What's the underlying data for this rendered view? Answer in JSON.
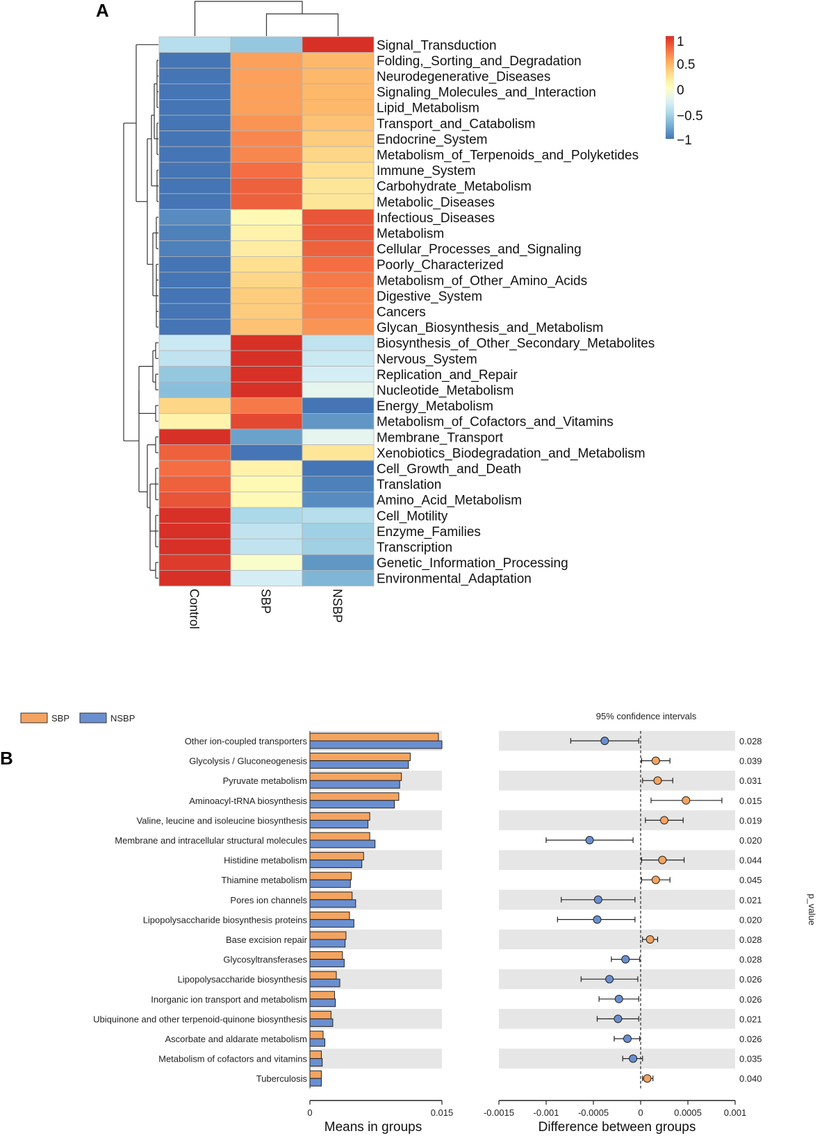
{
  "panels": {
    "a": "A",
    "b": "B"
  },
  "colors": {
    "high": "#d73027",
    "mid_high": "#f46d43",
    "orange": "#fdae61",
    "light_orange": "#fee090",
    "neutral": "#ffffbf",
    "light_blue": "#e0f3f8",
    "blue_mid": "#abd9e9",
    "blue": "#74add1",
    "low": "#4575b4",
    "sbp": "#f4a460",
    "nsbp": "#6a8fd0",
    "stripe": "#e6e6e6"
  },
  "heatmap": {
    "columns": [
      "Control",
      "SBP",
      "NSBP"
    ],
    "colorbar": {
      "ticks": [
        "1",
        "0.5",
        "0",
        "−0.5",
        "−1"
      ],
      "values": [
        1,
        0.5,
        0,
        -0.5,
        -1
      ]
    },
    "rows": [
      {
        "label": "Signal_Transduction",
        "values": [
          -0.45,
          -0.6,
          1.0
        ]
      },
      {
        "label": "Folding,_Sorting_and_Degradation",
        "values": [
          -1.0,
          0.55,
          0.45
        ]
      },
      {
        "label": "Neurodegenerative_Diseases",
        "values": [
          -1.0,
          0.55,
          0.45
        ]
      },
      {
        "label": "Signaling_Molecules_and_Interaction",
        "values": [
          -1.0,
          0.55,
          0.45
        ]
      },
      {
        "label": "Lipid_Metabolism",
        "values": [
          -1.0,
          0.55,
          0.45
        ]
      },
      {
        "label": "Transport_and_Catabolism",
        "values": [
          -1.0,
          0.6,
          0.4
        ]
      },
      {
        "label": "Endocrine_System",
        "values": [
          -1.0,
          0.65,
          0.35
        ]
      },
      {
        "label": "Metabolism_of_Terpenoids_and_Polyketides",
        "values": [
          -1.0,
          0.65,
          0.3
        ]
      },
      {
        "label": "Immune_System",
        "values": [
          -1.0,
          0.75,
          0.25
        ]
      },
      {
        "label": "Carbohydrate_Metabolism",
        "values": [
          -1.0,
          0.8,
          0.2
        ]
      },
      {
        "label": "Metabolic_Diseases",
        "values": [
          -1.0,
          0.8,
          0.2
        ]
      },
      {
        "label": "Infectious_Diseases",
        "values": [
          -0.9,
          0.05,
          0.85
        ]
      },
      {
        "label": "Metabolism",
        "values": [
          -0.95,
          0.1,
          0.85
        ]
      },
      {
        "label": "Cellular_Processes_and_Signaling",
        "values": [
          -0.95,
          0.15,
          0.8
        ]
      },
      {
        "label": "Poorly_Characterized",
        "values": [
          -1.0,
          0.25,
          0.75
        ]
      },
      {
        "label": "Metabolism_of_Other_Amino_Acids",
        "values": [
          -1.0,
          0.3,
          0.7
        ]
      },
      {
        "label": "Digestive_System",
        "values": [
          -1.0,
          0.35,
          0.65
        ]
      },
      {
        "label": "Cancers",
        "values": [
          -1.0,
          0.35,
          0.65
        ]
      },
      {
        "label": "Glycan_Biosynthesis_and_Metabolism",
        "values": [
          -1.0,
          0.4,
          0.6
        ]
      },
      {
        "label": "Biosynthesis_of_Other_Secondary_Metabolites",
        "values": [
          -0.35,
          1.0,
          -0.4
        ]
      },
      {
        "label": "Nervous_System",
        "values": [
          -0.4,
          1.0,
          -0.35
        ]
      },
      {
        "label": "Replication_and_Repair",
        "values": [
          -0.6,
          1.0,
          -0.3
        ]
      },
      {
        "label": "Nucleotide_Metabolism",
        "values": [
          -0.65,
          1.0,
          -0.2
        ]
      },
      {
        "label": "Energy_Metabolism",
        "values": [
          0.3,
          0.7,
          -1.0
        ]
      },
      {
        "label": "Metabolism_of_Cofactors_and_Vitamins",
        "values": [
          0.1,
          0.9,
          -0.85
        ]
      },
      {
        "label": "Membrane_Transport",
        "values": [
          1.0,
          -0.8,
          -0.2
        ]
      },
      {
        "label": "Xenobiotics_Biodegradation_and_Metabolism",
        "values": [
          0.8,
          -1.0,
          0.2
        ]
      },
      {
        "label": "Cell_Growth_and_Death",
        "values": [
          0.75,
          0.1,
          -1.0
        ]
      },
      {
        "label": "Translation",
        "values": [
          0.8,
          0.05,
          -0.95
        ]
      },
      {
        "label": "Amino_Acid_Metabolism",
        "values": [
          0.85,
          0.05,
          -0.9
        ]
      },
      {
        "label": "Cell_Motility",
        "values": [
          1.0,
          -0.5,
          -0.45
        ]
      },
      {
        "label": "Enzyme_Families",
        "values": [
          1.0,
          -0.4,
          -0.55
        ]
      },
      {
        "label": "Transcription",
        "values": [
          1.0,
          -0.4,
          -0.55
        ]
      },
      {
        "label": "Genetic_Information_Processing",
        "values": [
          0.95,
          -0.05,
          -0.85
        ]
      },
      {
        "label": "Environmental_Adaptation",
        "values": [
          1.0,
          -0.3,
          -0.7
        ]
      }
    ]
  },
  "chart_data": [
    {
      "type": "heatmap",
      "title": "",
      "columns": [
        "Control",
        "SBP",
        "NSBP"
      ],
      "value_range": [
        -1,
        1
      ]
    },
    {
      "type": "bar",
      "orientation": "horizontal",
      "legend": [
        "SBP",
        "NSBP"
      ],
      "legend_position": "top-left",
      "xlabel": "Means in groups",
      "xlim": [
        0,
        0.015
      ],
      "xticks": [
        "0",
        "0.015"
      ],
      "categories": [
        "Other ion-coupled transporters",
        "Glycolysis / Gluconeogenesis",
        "Pyruvate metabolism",
        "Aminoacyl-tRNA biosynthesis",
        "Valine, leucine and isoleucine biosynthesis",
        "Membrane and intracellular structural molecules",
        "Histidine metabolism",
        "Thiamine metabolism",
        "Pores ion channels",
        "Lipopolysaccharide biosynthesis proteins",
        "Base excision repair",
        "Glycosyltransferases",
        "Lipopolysaccharide biosynthesis",
        "Inorganic ion transport and metabolism",
        "Ubiquinone and other terpenoid-quinone biosynthesis",
        "Ascorbate and aldarate metabolism",
        "Metabolism of cofactors and vitamins",
        "Tuberculosis"
      ],
      "series": [
        {
          "name": "SBP",
          "values": [
            0.0146,
            0.0114,
            0.0104,
            0.0101,
            0.0068,
            0.0068,
            0.0061,
            0.0047,
            0.0048,
            0.0045,
            0.0041,
            0.0037,
            0.003,
            0.0028,
            0.0024,
            0.0015,
            0.0013,
            0.0013
          ]
        },
        {
          "name": "NSBP",
          "values": [
            0.015,
            0.0112,
            0.0102,
            0.0096,
            0.0066,
            0.0074,
            0.0059,
            0.0046,
            0.0052,
            0.005,
            0.004,
            0.0039,
            0.0034,
            0.0029,
            0.0026,
            0.0017,
            0.0014,
            0.0013
          ]
        }
      ]
    },
    {
      "type": "scatter",
      "title": "95% confidence intervals",
      "xlabel": "Difference between groups",
      "ylabel": "p_value",
      "xlim": [
        -0.0015,
        0.001
      ],
      "xticks": [
        "-0.0015",
        "-0.001",
        "-0.0005",
        "0",
        "0.0005",
        "0.001"
      ],
      "xtick_values": [
        -0.0015,
        -0.001,
        -0.0005,
        0,
        0.0005,
        0.001
      ],
      "points": [
        {
          "diff": -0.00038,
          "lo": -0.00074,
          "hi": -2e-05,
          "p": "0.028",
          "group": "NSBP"
        },
        {
          "diff": 0.00016,
          "lo": 1e-05,
          "hi": 0.00031,
          "p": "0.039",
          "group": "SBP"
        },
        {
          "diff": 0.00018,
          "lo": 2e-05,
          "hi": 0.00034,
          "p": "0.031",
          "group": "SBP"
        },
        {
          "diff": 0.00048,
          "lo": 0.00011,
          "hi": 0.00086,
          "p": "0.015",
          "group": "SBP"
        },
        {
          "diff": 0.00025,
          "lo": 5e-05,
          "hi": 0.00045,
          "p": "0.019",
          "group": "SBP"
        },
        {
          "diff": -0.00054,
          "lo": -0.001,
          "hi": -8e-05,
          "p": "0.020",
          "group": "NSBP"
        },
        {
          "diff": 0.00023,
          "lo": 1e-05,
          "hi": 0.00046,
          "p": "0.044",
          "group": "SBP"
        },
        {
          "diff": 0.00016,
          "lo": 1e-05,
          "hi": 0.00031,
          "p": "0.045",
          "group": "SBP"
        },
        {
          "diff": -0.00045,
          "lo": -0.00084,
          "hi": -6e-05,
          "p": "0.021",
          "group": "NSBP"
        },
        {
          "diff": -0.00046,
          "lo": -0.00088,
          "hi": -6e-05,
          "p": "0.020",
          "group": "NSBP"
        },
        {
          "diff": 0.0001,
          "lo": 2e-05,
          "hi": 0.00018,
          "p": "0.028",
          "group": "SBP"
        },
        {
          "diff": -0.00016,
          "lo": -0.00031,
          "hi": -1e-05,
          "p": "0.028",
          "group": "NSBP"
        },
        {
          "diff": -0.00033,
          "lo": -0.00063,
          "hi": -3e-05,
          "p": "0.026",
          "group": "NSBP"
        },
        {
          "diff": -0.00023,
          "lo": -0.00044,
          "hi": -2e-05,
          "p": "0.026",
          "group": "NSBP"
        },
        {
          "diff": -0.00024,
          "lo": -0.00046,
          "hi": -2e-05,
          "p": "0.021",
          "group": "NSBP"
        },
        {
          "diff": -0.00014,
          "lo": -0.00028,
          "hi": -1e-05,
          "p": "0.026",
          "group": "NSBP"
        },
        {
          "diff": -8e-05,
          "lo": -0.00019,
          "hi": 2e-05,
          "p": "0.035",
          "group": "NSBP"
        },
        {
          "diff": 7e-05,
          "lo": 2e-05,
          "hi": 0.00013,
          "p": "0.040",
          "group": "SBP"
        }
      ]
    }
  ]
}
